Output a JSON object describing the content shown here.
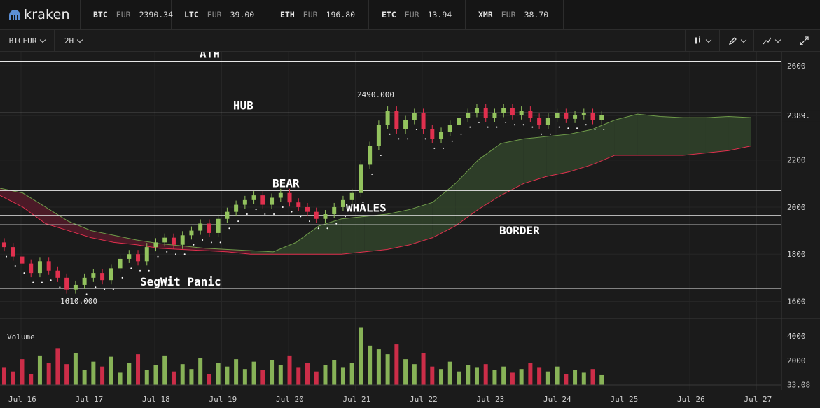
{
  "app": {
    "name": "kraken"
  },
  "tickers": [
    {
      "symbol": "BTC",
      "currency": "EUR",
      "price": "2390.34"
    },
    {
      "symbol": "LTC",
      "currency": "EUR",
      "price": "39.00"
    },
    {
      "symbol": "ETH",
      "currency": "EUR",
      "price": "196.80"
    },
    {
      "symbol": "ETC",
      "currency": "EUR",
      "price": "13.94"
    },
    {
      "symbol": "XMR",
      "currency": "EUR",
      "price": "38.70"
    }
  ],
  "toolbar": {
    "pair": "BTCEUR",
    "interval": "2H"
  },
  "colors": {
    "up": "#93c35e",
    "down": "#e0304e",
    "cloud_bull": "#2e3f29",
    "cloud_bear": "#4e1a28",
    "background": "#1b1b1b"
  },
  "chart_data": {
    "type": "candlestick",
    "y_axis": {
      "ticks": [
        1600,
        1800,
        2000,
        2200,
        2389,
        2600
      ],
      "range": [
        1530,
        2660
      ]
    },
    "x_axis": {
      "ticks": [
        "Jul 16",
        "Jul 17",
        "Jul 18",
        "Jul 19",
        "Jul 20",
        "Jul 21",
        "Jul 22",
        "Jul 23",
        "Jul 24",
        "Jul 25",
        "Jul 26",
        "Jul 27"
      ]
    },
    "price_marker": "2389.",
    "high_label": "2490.000",
    "low_label": "1610.000",
    "levels": [
      {
        "name": "ATH",
        "price": 2620
      },
      {
        "name": "HUB",
        "price": 2400
      },
      {
        "name": "BEAR",
        "price": 2070
      },
      {
        "name": "WHALES",
        "price": 1965
      },
      {
        "name": "BORDER",
        "price": 1925
      },
      {
        "name": "SegWit Panic",
        "price": 1655
      }
    ],
    "candles": [
      [
        1850,
        1830
      ],
      [
        1830,
        1790
      ],
      [
        1790,
        1760
      ],
      [
        1760,
        1720
      ],
      [
        1720,
        1770
      ],
      [
        1770,
        1730
      ],
      [
        1730,
        1700
      ],
      [
        1700,
        1650
      ],
      [
        1650,
        1670
      ],
      [
        1670,
        1700
      ],
      [
        1700,
        1720
      ],
      [
        1720,
        1690
      ],
      [
        1690,
        1740
      ],
      [
        1740,
        1780
      ],
      [
        1780,
        1800
      ],
      [
        1800,
        1770
      ],
      [
        1770,
        1830
      ],
      [
        1830,
        1850
      ],
      [
        1850,
        1870
      ],
      [
        1870,
        1840
      ],
      [
        1840,
        1880
      ],
      [
        1880,
        1900
      ],
      [
        1900,
        1930
      ],
      [
        1930,
        1890
      ],
      [
        1890,
        1950
      ],
      [
        1950,
        1980
      ],
      [
        1980,
        2010
      ],
      [
        2010,
        2030
      ],
      [
        2030,
        2050
      ],
      [
        2050,
        2010
      ],
      [
        2010,
        2040
      ],
      [
        2040,
        2060
      ],
      [
        2060,
        2020
      ],
      [
        2020,
        2000
      ],
      [
        2000,
        1980
      ],
      [
        1980,
        1950
      ],
      [
        1950,
        1970
      ],
      [
        1970,
        2000
      ],
      [
        2000,
        2030
      ],
      [
        2030,
        2060
      ],
      [
        2060,
        2180
      ],
      [
        2180,
        2260
      ],
      [
        2260,
        2350
      ],
      [
        2350,
        2410
      ],
      [
        2410,
        2330
      ],
      [
        2330,
        2370
      ],
      [
        2370,
        2400
      ],
      [
        2400,
        2330
      ],
      [
        2330,
        2290
      ],
      [
        2290,
        2320
      ],
      [
        2320,
        2350
      ],
      [
        2350,
        2380
      ],
      [
        2380,
        2400
      ],
      [
        2400,
        2420
      ],
      [
        2420,
        2380
      ],
      [
        2380,
        2400
      ],
      [
        2400,
        2420
      ],
      [
        2420,
        2390
      ],
      [
        2390,
        2410
      ],
      [
        2410,
        2380
      ],
      [
        2380,
        2350
      ],
      [
        2350,
        2380
      ],
      [
        2380,
        2400
      ],
      [
        2400,
        2375
      ],
      [
        2375,
        2390
      ],
      [
        2390,
        2400
      ],
      [
        2400,
        2370
      ],
      [
        2370,
        2390
      ]
    ],
    "cloud_pairs": [
      [
        2080,
        2050
      ],
      [
        2060,
        2000
      ],
      [
        2000,
        1930
      ],
      [
        1940,
        1900
      ],
      [
        1900,
        1870
      ],
      [
        1880,
        1850
      ],
      [
        1860,
        1840
      ],
      [
        1845,
        1825
      ],
      [
        1835,
        1820
      ],
      [
        1825,
        1815
      ],
      [
        1820,
        1810
      ],
      [
        1815,
        1800
      ],
      [
        1810,
        1800
      ],
      [
        1850,
        1800
      ],
      [
        1920,
        1800
      ],
      [
        1950,
        1800
      ],
      [
        1960,
        1810
      ],
      [
        1970,
        1820
      ],
      [
        1990,
        1840
      ],
      [
        2020,
        1870
      ],
      [
        2100,
        1920
      ],
      [
        2200,
        1990
      ],
      [
        2270,
        2050
      ],
      [
        2290,
        2100
      ],
      [
        2300,
        2130
      ],
      [
        2310,
        2150
      ],
      [
        2330,
        2180
      ],
      [
        2370,
        2220
      ],
      [
        2395,
        2220
      ],
      [
        2385,
        2220
      ],
      [
        2380,
        2220
      ],
      [
        2380,
        2230
      ],
      [
        2385,
        2240
      ],
      [
        2380,
        2260
      ]
    ],
    "volume": {
      "label": "Volume",
      "ticks": [
        "4000",
        "2000",
        "33.08"
      ],
      "range": [
        0,
        4900
      ],
      "values": [
        1400,
        1100,
        2100,
        900,
        2400,
        1800,
        3000,
        1700,
        2600,
        1200,
        1900,
        1500,
        2300,
        1000,
        1800,
        2500,
        1200,
        1600,
        2400,
        1100,
        1700,
        1300,
        2200,
        900,
        1800,
        1500,
        2100,
        1300,
        1900,
        1200,
        2000,
        1600,
        2400,
        1400,
        1800,
        1100,
        1600,
        2000,
        1400,
        1800,
        4700,
        3200,
        2900,
        2500,
        3300,
        2100,
        1700,
        2600,
        1500,
        1300,
        1900,
        1100,
        1600,
        1400,
        1700,
        1200,
        1500,
        1000,
        1300,
        1800,
        1400,
        1100,
        1500,
        900,
        1200,
        1000,
        1300,
        800
      ]
    }
  }
}
